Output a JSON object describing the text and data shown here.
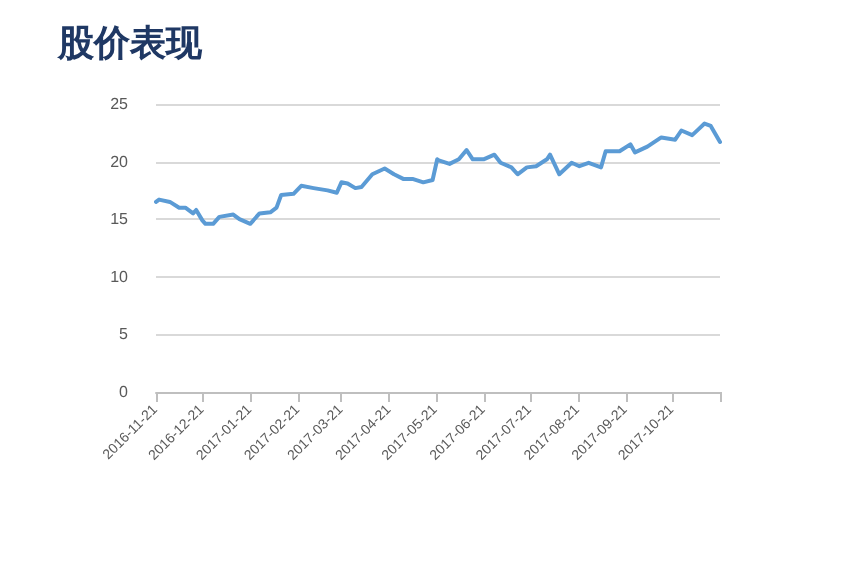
{
  "chart_data": {
    "type": "line",
    "title": "股价表现",
    "x": [
      "2016-11-21",
      "2016-11-23",
      "2016-11-30",
      "2016-12-06",
      "2016-12-10",
      "2016-12-15",
      "2016-12-17",
      "2016-12-21",
      "2016-12-23",
      "2016-12-28",
      "2017-01-01",
      "2017-01-10",
      "2017-01-14",
      "2017-01-21",
      "2017-01-27",
      "2017-02-03",
      "2017-02-07",
      "2017-02-10",
      "2017-02-18",
      "2017-02-23",
      "2017-03-03",
      "2017-03-12",
      "2017-03-18",
      "2017-03-21",
      "2017-03-25",
      "2017-03-30",
      "2017-04-03",
      "2017-04-10",
      "2017-04-18",
      "2017-04-24",
      "2017-04-30",
      "2017-05-06",
      "2017-05-13",
      "2017-05-19",
      "2017-05-22",
      "2017-05-23",
      "2017-05-30",
      "2017-06-05",
      "2017-06-10",
      "2017-06-14",
      "2017-06-21",
      "2017-06-28",
      "2017-07-02",
      "2017-07-09",
      "2017-07-13",
      "2017-07-19",
      "2017-07-25",
      "2017-08-01",
      "2017-08-03",
      "2017-08-09",
      "2017-08-17",
      "2017-08-22",
      "2017-08-28",
      "2017-09-05",
      "2017-09-08",
      "2017-09-17",
      "2017-09-24",
      "2017-09-27",
      "2017-10-05",
      "2017-10-14",
      "2017-10-23",
      "2017-10-27",
      "2017-11-03",
      "2017-11-07",
      "2017-11-11",
      "2017-11-15",
      "2017-11-21"
    ],
    "series": [
      {
        "color": "#5b9bd5",
        "values": [
          16.5,
          16.7,
          16.5,
          16.0,
          16.0,
          15.5,
          15.8,
          14.9,
          14.6,
          14.6,
          15.2,
          15.4,
          15.0,
          14.6,
          15.5,
          15.6,
          16.0,
          17.1,
          17.2,
          17.9,
          17.7,
          17.5,
          17.3,
          18.2,
          18.1,
          17.7,
          17.8,
          18.9,
          19.4,
          18.9,
          18.5,
          18.5,
          18.2,
          18.4,
          20.2,
          20.1,
          19.8,
          20.2,
          21.0,
          20.2,
          20.2,
          20.6,
          19.9,
          19.5,
          18.9,
          19.5,
          19.6,
          20.2,
          20.6,
          18.9,
          19.9,
          19.6,
          19.9,
          19.5,
          20.9,
          20.9,
          21.5,
          20.8,
          21.3,
          22.1,
          21.9,
          22.7,
          22.3,
          22.8,
          23.3,
          23.1,
          21.7
        ]
      }
    ],
    "xlim": [
      "2016-11-21",
      "2017-11-21"
    ],
    "xticks": [
      "2016-11-21",
      "2016-12-21",
      "2017-01-21",
      "2017-02-21",
      "2017-03-21",
      "2017-04-21",
      "2017-05-21",
      "2017-06-21",
      "2017-07-21",
      "2017-08-21",
      "2017-09-21",
      "2017-10-21",
      {
        "value": "2017-11-21",
        "label": null
      }
    ],
    "ylim": [
      0,
      25
    ],
    "yticks": [
      0,
      5,
      10,
      15,
      20,
      25
    ],
    "grid": "y",
    "marker": "none",
    "line_style": "solid"
  }
}
